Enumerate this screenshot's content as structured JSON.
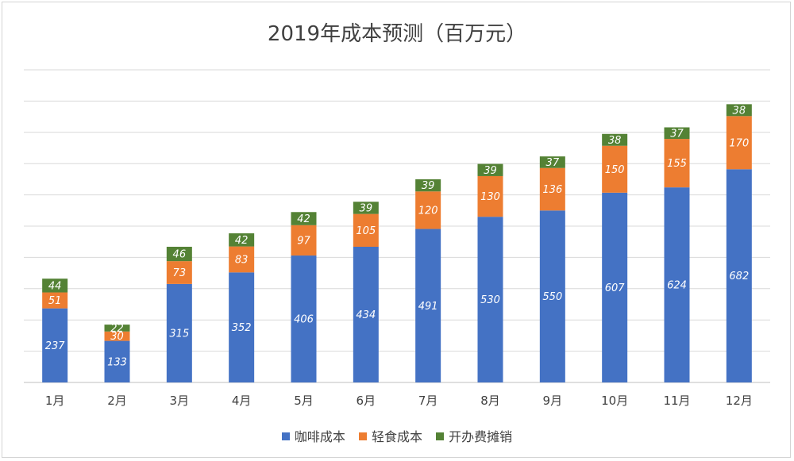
{
  "chart_data": {
    "type": "bar",
    "stacked": true,
    "title": "2019年成本预测（百万元）",
    "categories": [
      "1月",
      "2月",
      "3月",
      "4月",
      "5月",
      "6月",
      "7月",
      "8月",
      "9月",
      "10月",
      "11月",
      "12月"
    ],
    "series": [
      {
        "name": "咖啡成本",
        "color": "#4472C4",
        "values": [
          237,
          133,
          315,
          352,
          406,
          434,
          491,
          530,
          550,
          607,
          624,
          682
        ]
      },
      {
        "name": "轻食成本",
        "color": "#ED7D31",
        "values": [
          51,
          30,
          73,
          83,
          97,
          105,
          120,
          130,
          136,
          150,
          155,
          170
        ]
      },
      {
        "name": "开办费摊销",
        "color": "#548235",
        "values": [
          44,
          22,
          46,
          42,
          42,
          39,
          39,
          39,
          37,
          38,
          37,
          38
        ]
      }
    ],
    "ylim": [
      0,
      1000
    ],
    "grid": true,
    "legend_position": "bottom"
  }
}
